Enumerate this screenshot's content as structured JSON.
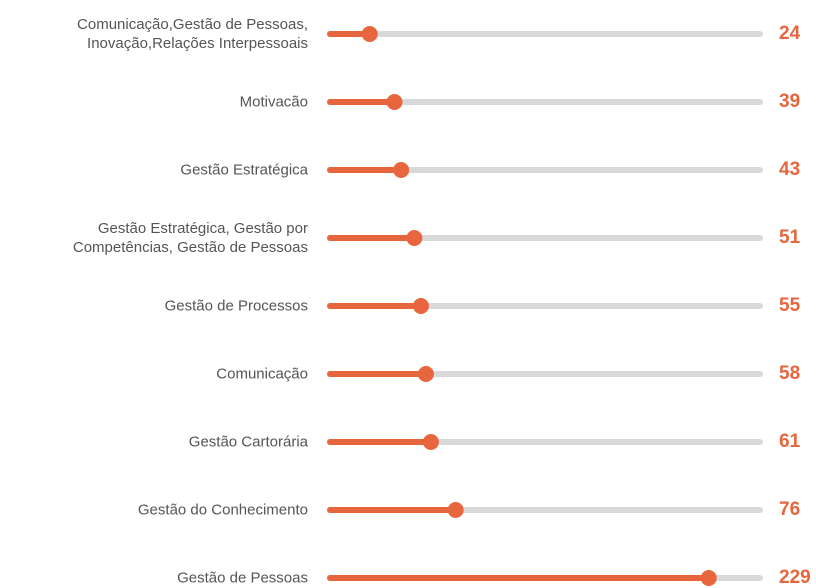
{
  "chart_data": {
    "type": "lollipop",
    "categories": [
      "Comunicação,Gestão de Pessoas,\nInovação,Relações Interpessoais",
      "Motivacão",
      "Gestão Estratégica",
      "Gestão Estratégica, Gestão por\nCompetências, Gestão de Pessoas",
      "Gestão de Processos",
      "Comunicação",
      "Gestão Cartorária",
      "Gestão do Conhecimento",
      "Gestão de Pessoas"
    ],
    "values": [
      24,
      39,
      43,
      51,
      55,
      58,
      61,
      76,
      229
    ],
    "color": "#e8663d",
    "track_color": "#d9d9d9",
    "xlim": [
      0,
      260
    ]
  }
}
